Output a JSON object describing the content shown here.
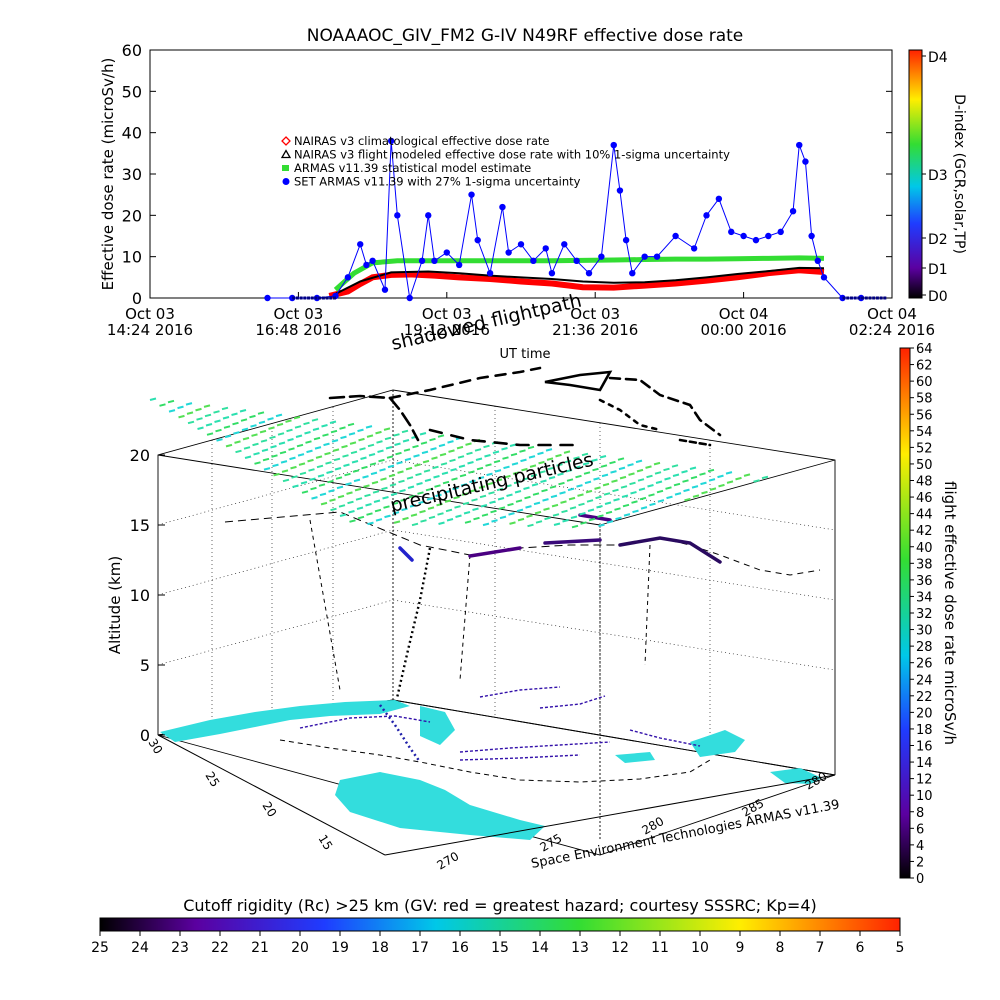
{
  "chart_data": [
    {
      "type": "scatter",
      "title": "NOAAAOC_GIV_FM2 G-IV    N49RF  effective dose rate",
      "ylabel": "Effective dose rate (microSv/h)",
      "xlabel": "UT time",
      "ylim": [
        0,
        60
      ],
      "yticks": [
        "0",
        "10",
        "20",
        "30",
        "40",
        "50",
        "60"
      ],
      "xticks": [
        {
          "day": "Oct 03",
          "time": "14:24 2016"
        },
        {
          "day": "Oct 03",
          "time": "16:48 2016"
        },
        {
          "day": "Oct 03",
          "time": "19:12 2016"
        },
        {
          "day": "Oct 03",
          "time": "21:36 2016"
        },
        {
          "day": "Oct 04",
          "time": "00:00 2016"
        },
        {
          "day": "Oct 04",
          "time": "02:24 2016"
        }
      ],
      "xlim_hours": [
        0,
        12
      ],
      "legend": {
        "placement": "top-left",
        "entries": [
          {
            "marker": "diamond",
            "color": "#ff0000",
            "label": "NAIRAS v3 climatological effective dose rate"
          },
          {
            "marker": "triangle",
            "color": "#000000",
            "label": "NAIRAS v3 flight modeled effective dose rate with 10% 1-sigma uncertainty"
          },
          {
            "marker": "asterisk",
            "color": "#33dd33",
            "label": "ARMAS v11.39  statistical model estimate"
          },
          {
            "marker": "dot",
            "color": "#0000ff",
            "label": "SET ARMAS v11.39 with 27% 1-sigma uncertainty"
          }
        ]
      },
      "series": [
        {
          "name": "NAIRAS v3 climatological effective dose rate",
          "color": "#ff0000",
          "x": [
            2.9,
            3.2,
            3.4,
            3.6,
            3.9,
            4.2,
            4.6,
            5.0,
            5.5,
            6.0,
            6.5,
            7.0,
            7.5,
            8.0,
            8.5,
            9.0,
            9.5,
            10.0,
            10.5,
            10.9
          ],
          "y": [
            0.5,
            1.6,
            3.4,
            5.0,
            5.6,
            5.7,
            5.4,
            5.0,
            4.6,
            4.0,
            3.5,
            2.6,
            2.5,
            3.0,
            3.5,
            4.2,
            5.0,
            6.0,
            6.7,
            6.3
          ]
        },
        {
          "name": "NAIRAS v3 flight modeled effective dose rate with 10% 1-sigma uncertainty",
          "color": "#000000",
          "x": [
            3.0,
            3.4,
            3.9,
            4.5,
            5.0,
            5.5,
            6.0,
            6.5,
            7.0,
            7.5,
            8.0,
            8.5,
            9.0,
            9.5,
            10.0,
            10.5,
            10.9
          ],
          "y": [
            1.0,
            4.0,
            6.2,
            6.4,
            6.0,
            5.4,
            5.0,
            4.6,
            4.0,
            3.7,
            3.8,
            4.3,
            5.0,
            5.8,
            6.5,
            7.3,
            7.2
          ]
        },
        {
          "name": "ARMAS v11.39  statistical model estimate",
          "color": "#33dd33",
          "x": [
            3.0,
            3.3,
            3.6,
            4.0,
            4.5,
            5.0,
            5.5,
            6.0,
            6.5,
            7.0,
            7.5,
            8.0,
            8.5,
            9.0,
            9.5,
            10.0,
            10.5,
            10.9
          ],
          "y": [
            2.0,
            6.0,
            8.5,
            9.0,
            9.0,
            9.0,
            9.0,
            9.0,
            9.0,
            9.1,
            9.2,
            9.3,
            9.4,
            9.4,
            9.5,
            9.6,
            9.7,
            9.6
          ]
        },
        {
          "name": "SET ARMAS v11.39 with 27% 1-sigma uncertainty",
          "color": "#0000ff",
          "x": [
            1.9,
            2.3,
            2.7,
            3.0,
            3.2,
            3.4,
            3.5,
            3.6,
            3.8,
            3.9,
            4.0,
            4.2,
            4.4,
            4.5,
            4.6,
            4.8,
            5.0,
            5.2,
            5.3,
            5.5,
            5.7,
            5.8,
            6.0,
            6.2,
            6.4,
            6.5,
            6.7,
            6.9,
            7.1,
            7.3,
            7.5,
            7.6,
            7.7,
            7.8,
            8.0,
            8.2,
            8.5,
            8.8,
            9.0,
            9.2,
            9.4,
            9.6,
            9.8,
            10.0,
            10.2,
            10.4,
            10.5,
            10.6,
            10.7,
            10.8,
            10.9,
            11.2,
            11.5
          ],
          "y": [
            0,
            0,
            0,
            0.5,
            5,
            13,
            8,
            9,
            2,
            38,
            20,
            0,
            9,
            20,
            9,
            11,
            8,
            25,
            14,
            6,
            22,
            11,
            13,
            9,
            12,
            6,
            13,
            9,
            6,
            10,
            37,
            26,
            14,
            6,
            10,
            10,
            15,
            12,
            20,
            24,
            16,
            15,
            14,
            15,
            16,
            21,
            37,
            33,
            15,
            9,
            5,
            0,
            0
          ]
        }
      ],
      "colorbar": {
        "label": "D-index (GCR,solar,TP)",
        "ticks": [
          "D0",
          "D1",
          "D2",
          "D3",
          "D4"
        ]
      }
    },
    {
      "type": "3d-map",
      "subtitle": "shadowed flightpath",
      "annotation": "precipitating particles",
      "zlabel": "Altitude (km)",
      "zticks": [
        "0",
        "5",
        "10",
        "15",
        "20"
      ],
      "lat_ticks": [
        "30",
        "25",
        "20",
        "15"
      ],
      "lon_ticks": [
        "270",
        "275",
        "280",
        "285",
        "280"
      ],
      "credit": "Space Environment Technologies ARMAS v11.39",
      "colorbar": {
        "label": "flight effective dose rate microSv/h",
        "min": 0,
        "max": 64,
        "step": 2
      },
      "bottom_colorbar": {
        "label": "Cutoff rigidity (Rc) >25 km (GV: red = greatest hazard; courtesy SSSRC; Kp=4)",
        "ticks": [
          "25",
          "24",
          "23",
          "22",
          "21",
          "20",
          "19",
          "18",
          "17",
          "16",
          "15",
          "14",
          "13",
          "12",
          "11",
          "10",
          "9",
          "8",
          "7",
          "6",
          "5"
        ]
      }
    }
  ],
  "colors": {
    "flightpath": "#000000",
    "particles": "#33dd99",
    "cutoff_land": "#33dddd",
    "coast": "#3311aa"
  }
}
